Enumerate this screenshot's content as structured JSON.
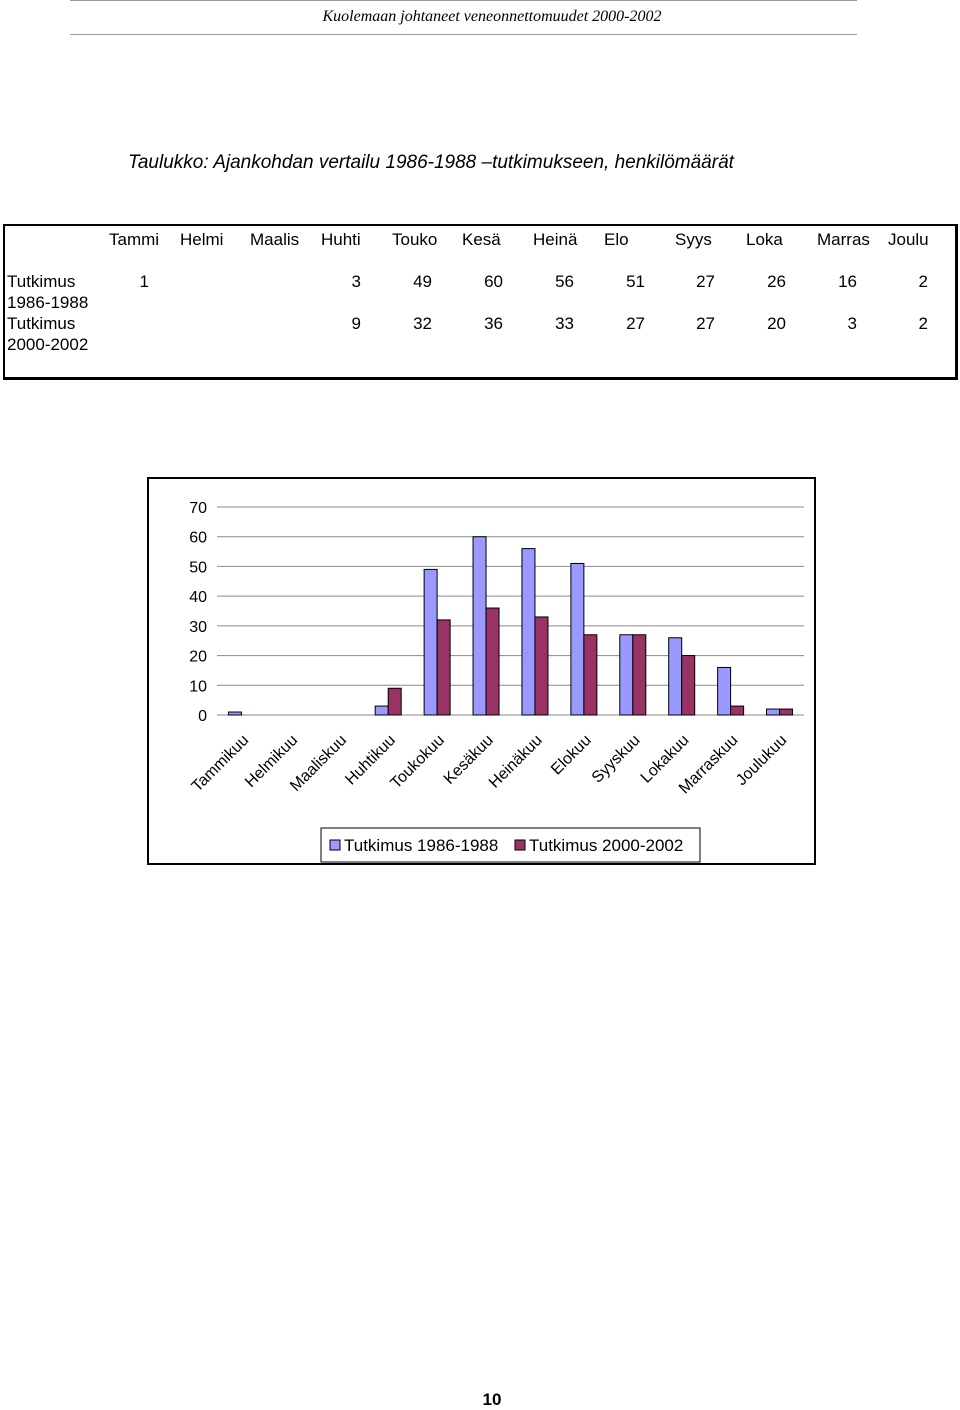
{
  "header": {
    "running_title": "Kuolemaan johtaneet veneonnettomuudet 2000-2002"
  },
  "caption": "Taulukko: Ajankohdan vertailu 1986-1988 –tutkimukseen, henkilömäärät",
  "table": {
    "columns": [
      "Tammi",
      "Helmi",
      "Maalis",
      "Huhti",
      "Touko",
      "Kesä",
      "Heinä",
      "Elo",
      "Syys",
      "Loka",
      "Marras",
      "Joulu"
    ],
    "rows": [
      {
        "label_line1": "Tutkimus",
        "label_line2": "1986-1988",
        "values": [
          "1",
          "",
          "",
          "3",
          "49",
          "60",
          "56",
          "51",
          "27",
          "26",
          "16",
          "2"
        ]
      },
      {
        "label_line1": "Tutkimus",
        "label_line2": "2000-2002",
        "values": [
          "",
          "",
          "",
          "9",
          "32",
          "36",
          "33",
          "27",
          "27",
          "20",
          "3",
          "2"
        ]
      }
    ]
  },
  "chart_data": {
    "type": "bar",
    "categories": [
      "Tammikuu",
      "Helmikuu",
      "Maaliskuu",
      "Huhtikuu",
      "Toukokuu",
      "Kesäkuu",
      "Heinäkuu",
      "Elokuu",
      "Syyskuu",
      "Lokakuu",
      "Marraskuu",
      "Joulukuu"
    ],
    "series": [
      {
        "name": "Tutkimus 1986-1988",
        "color": "#9999FF",
        "values": [
          1,
          0,
          0,
          3,
          49,
          60,
          56,
          51,
          27,
          26,
          16,
          2
        ]
      },
      {
        "name": "Tutkimus 2000-2002",
        "color": "#993366",
        "values": [
          0,
          0,
          0,
          9,
          32,
          36,
          33,
          27,
          27,
          20,
          3,
          2
        ]
      }
    ],
    "ylim": [
      0,
      70
    ],
    "yticks": [
      "0",
      "10",
      "20",
      "30",
      "40",
      "50",
      "60",
      "70"
    ],
    "grid": true,
    "legend": "bottom"
  },
  "footer": {
    "page_number": "10"
  }
}
